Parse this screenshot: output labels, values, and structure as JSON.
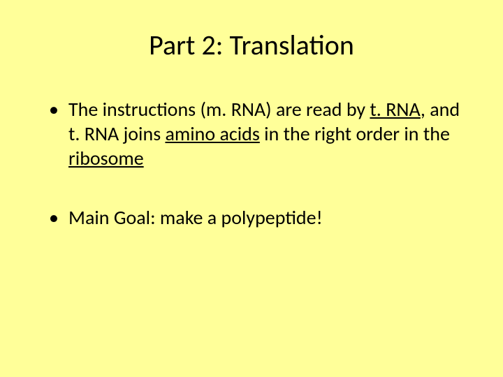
{
  "slide": {
    "background_color": "#ffff99",
    "text_color": "#000000",
    "title": {
      "text": "Part 2: Translation",
      "fontsize": 40,
      "align": "center"
    },
    "bullets": [
      {
        "pre1": "The instructions (m. RNA) are read by ",
        "u1": "t. RNA",
        "mid1": ", and t. RNA joins ",
        "u2": "amino acids",
        "mid2": " in the right order in the ",
        "u3": "ribosome",
        "fontsize": 28
      },
      {
        "text": "Main Goal: make a polypeptide!",
        "fontsize": 28
      }
    ]
  }
}
